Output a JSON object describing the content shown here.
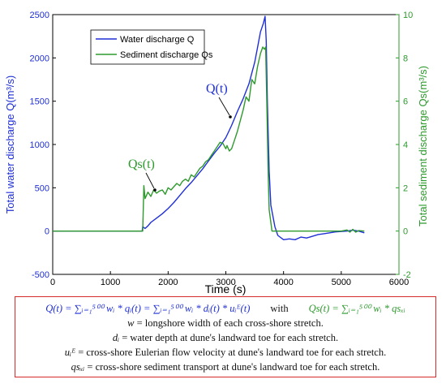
{
  "chart_data": {
    "type": "line",
    "xlabel": "Time (s)",
    "ylabel_left": "Total water discharge Q(m³/s)",
    "ylabel_right": "Total sediment discharge Qs(m³/s)",
    "xlim": [
      0,
      6000
    ],
    "ylim_left": [
      -500,
      2500
    ],
    "ylim_right": [
      -2,
      10
    ],
    "xticks": [
      "0",
      "1000",
      "2000",
      "3000",
      "4000",
      "5000",
      "6000"
    ],
    "yticks_left": [
      "-500",
      "0",
      "500",
      "1000",
      "1500",
      "2000",
      "2500"
    ],
    "yticks_right": [
      "-2",
      "0",
      "2",
      "4",
      "6",
      "8",
      "10"
    ],
    "grid": false,
    "legend_position": "top-left",
    "annotations": [
      "Q(t)",
      "Qs(t)"
    ],
    "series": [
      {
        "name": "Water discharge Q",
        "axis": "left",
        "color": "#1f2fd6",
        "points": [
          [
            0,
            0
          ],
          [
            1550,
            0
          ],
          [
            1560,
            50
          ],
          [
            1600,
            30
          ],
          [
            1650,
            60
          ],
          [
            1700,
            100
          ],
          [
            1800,
            150
          ],
          [
            1900,
            200
          ],
          [
            2000,
            260
          ],
          [
            2100,
            330
          ],
          [
            2200,
            410
          ],
          [
            2300,
            490
          ],
          [
            2400,
            560
          ],
          [
            2500,
            640
          ],
          [
            2600,
            720
          ],
          [
            2700,
            810
          ],
          [
            2800,
            900
          ],
          [
            2900,
            980
          ],
          [
            3000,
            1080
          ],
          [
            3050,
            1150
          ],
          [
            3100,
            1220
          ],
          [
            3200,
            1380
          ],
          [
            3300,
            1530
          ],
          [
            3400,
            1700
          ],
          [
            3500,
            1950
          ],
          [
            3550,
            2120
          ],
          [
            3600,
            2300
          ],
          [
            3650,
            2400
          ],
          [
            3680,
            2480
          ],
          [
            3700,
            2200
          ],
          [
            3720,
            1500
          ],
          [
            3750,
            700
          ],
          [
            3780,
            300
          ],
          [
            3850,
            50
          ],
          [
            3900,
            -50
          ],
          [
            4000,
            -100
          ],
          [
            4100,
            -90
          ],
          [
            4200,
            -100
          ],
          [
            4300,
            -70
          ],
          [
            4400,
            -80
          ],
          [
            4500,
            -60
          ],
          [
            4600,
            -40
          ],
          [
            4700,
            -30
          ],
          [
            4800,
            -20
          ],
          [
            4900,
            -10
          ],
          [
            5000,
            -5
          ],
          [
            5100,
            0
          ],
          [
            5200,
            10
          ],
          [
            5300,
            0
          ],
          [
            5400,
            -20
          ]
        ]
      },
      {
        "name": "Sediment discharge Qs",
        "axis": "right",
        "color": "#2e9a2e",
        "points": [
          [
            0,
            0
          ],
          [
            1560,
            0
          ],
          [
            1580,
            2.1
          ],
          [
            1600,
            1.5
          ],
          [
            1650,
            1.8
          ],
          [
            1700,
            1.6
          ],
          [
            1750,
            1.9
          ],
          [
            1800,
            1.75
          ],
          [
            1850,
            1.85
          ],
          [
            1900,
            1.9
          ],
          [
            1950,
            1.7
          ],
          [
            2000,
            2.0
          ],
          [
            2050,
            1.9
          ],
          [
            2100,
            2.05
          ],
          [
            2150,
            2.2
          ],
          [
            2200,
            2.1
          ],
          [
            2250,
            2.3
          ],
          [
            2300,
            2.4
          ],
          [
            2350,
            2.3
          ],
          [
            2400,
            2.6
          ],
          [
            2450,
            2.5
          ],
          [
            2500,
            2.7
          ],
          [
            2550,
            2.9
          ],
          [
            2600,
            3.0
          ],
          [
            2650,
            3.2
          ],
          [
            2700,
            3.3
          ],
          [
            2750,
            3.5
          ],
          [
            2800,
            3.7
          ],
          [
            2850,
            3.9
          ],
          [
            2900,
            4.1
          ],
          [
            2950,
            4.05
          ],
          [
            3000,
            3.8
          ],
          [
            3020,
            3.95
          ],
          [
            3060,
            3.7
          ],
          [
            3100,
            3.8
          ],
          [
            3150,
            4.2
          ],
          [
            3200,
            4.6
          ],
          [
            3250,
            5.1
          ],
          [
            3300,
            5.6
          ],
          [
            3350,
            6.2
          ],
          [
            3400,
            6.0
          ],
          [
            3450,
            7.0
          ],
          [
            3500,
            6.8
          ],
          [
            3550,
            7.6
          ],
          [
            3600,
            8.2
          ],
          [
            3640,
            8.5
          ],
          [
            3670,
            8.4
          ],
          [
            3690,
            8.5
          ],
          [
            3710,
            6.0
          ],
          [
            3730,
            3.0
          ],
          [
            3750,
            1.0
          ],
          [
            3800,
            0.0
          ],
          [
            3900,
            0.0
          ],
          [
            4200,
            0.0
          ],
          [
            4500,
            0.0
          ],
          [
            5000,
            0.0
          ],
          [
            5100,
            0.05
          ],
          [
            5150,
            -0.05
          ],
          [
            5200,
            0.08
          ],
          [
            5250,
            -0.05
          ],
          [
            5300,
            0.02
          ],
          [
            5400,
            0.0
          ]
        ]
      }
    ]
  },
  "formulas": {
    "line1_blue": "Q(t) = ∑ᵢ₌₁⁵⁰⁰ wᵢ * qᵢ(t) = ∑ᵢ₌₁⁵⁰⁰ wᵢ * dᵢ(t) * uᵢᴱ(t)",
    "line1_with": "with",
    "line1_green": "Qs(t) = ∑ᵢ₌₁⁵⁰⁰ wᵢ * qsₓᵢ",
    "line2_sym": "w",
    "line2_text": "= longshore width of each cross-shore stretch.",
    "line3_sym": "dᵢ",
    "line3_text": "= water depth at dune's landward toe for each stretch.",
    "line4_sym": "uᵢᴱ",
    "line4_text": "= cross-shore Eulerian flow velocity at dune's landward toe for each stretch.",
    "line5_sym": "qsₓᵢ",
    "line5_text": "= cross-shore sediment transport at dune's landward toe for each stretch."
  }
}
